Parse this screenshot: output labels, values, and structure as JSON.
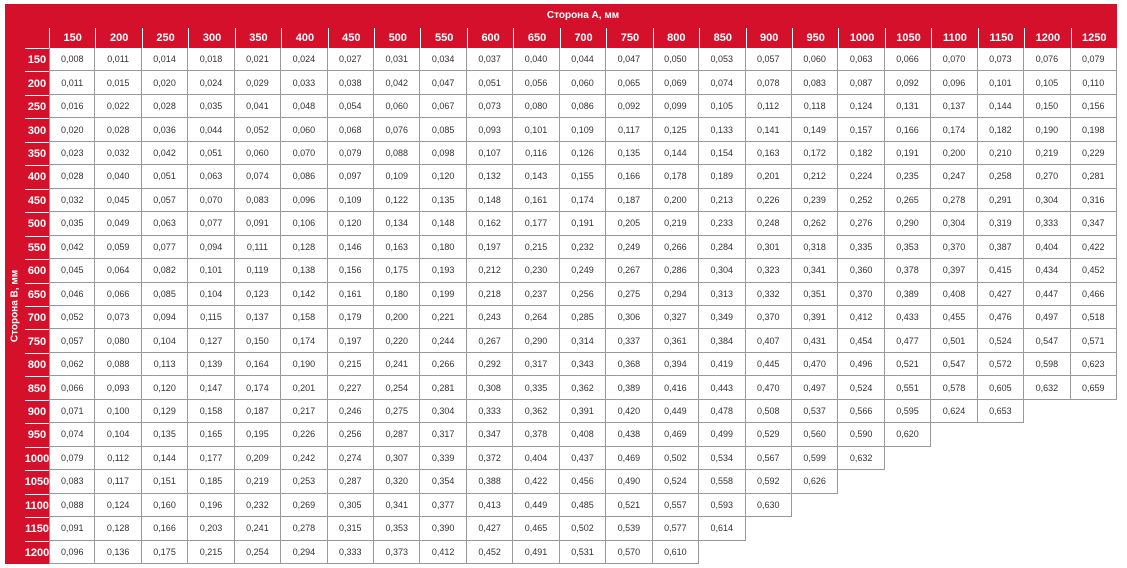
{
  "table": {
    "col_title": "Сторона А, мм",
    "row_title": "Сторона В, мм",
    "col_headers": [
      "150",
      "200",
      "250",
      "300",
      "350",
      "400",
      "450",
      "500",
      "550",
      "600",
      "650",
      "700",
      "750",
      "800",
      "850",
      "900",
      "950",
      "1000",
      "1050",
      "1100",
      "1150",
      "1200",
      "1250"
    ],
    "rows": [
      {
        "label": "150",
        "values": [
          "0,008",
          "0,011",
          "0,014",
          "0,018",
          "0,021",
          "0,024",
          "0,027",
          "0,031",
          "0,034",
          "0,037",
          "0,040",
          "0,044",
          "0,047",
          "0,050",
          "0,053",
          "0,057",
          "0,060",
          "0,063",
          "0,066",
          "0,070",
          "0,073",
          "0,076",
          "0,079"
        ]
      },
      {
        "label": "200",
        "values": [
          "0,011",
          "0,015",
          "0,020",
          "0,024",
          "0,029",
          "0,033",
          "0,038",
          "0,042",
          "0,047",
          "0,051",
          "0,056",
          "0,060",
          "0,065",
          "0,069",
          "0,074",
          "0,078",
          "0,083",
          "0,087",
          "0,092",
          "0,096",
          "0,101",
          "0,105",
          "0,110"
        ]
      },
      {
        "label": "250",
        "values": [
          "0,016",
          "0,022",
          "0,028",
          "0,035",
          "0,041",
          "0,048",
          "0,054",
          "0,060",
          "0,067",
          "0,073",
          "0,080",
          "0,086",
          "0,092",
          "0,099",
          "0,105",
          "0,112",
          "0,118",
          "0,124",
          "0,131",
          "0,137",
          "0,144",
          "0,150",
          "0,156"
        ]
      },
      {
        "label": "300",
        "values": [
          "0,020",
          "0,028",
          "0,036",
          "0,044",
          "0,052",
          "0,060",
          "0,068",
          "0,076",
          "0,085",
          "0,093",
          "0,101",
          "0,109",
          "0,117",
          "0,125",
          "0,133",
          "0,141",
          "0,149",
          "0,157",
          "0,166",
          "0,174",
          "0,182",
          "0,190",
          "0,198"
        ]
      },
      {
        "label": "350",
        "values": [
          "0,023",
          "0,032",
          "0,042",
          "0,051",
          "0,060",
          "0,070",
          "0,079",
          "0,088",
          "0,098",
          "0,107",
          "0,116",
          "0,126",
          "0,135",
          "0,144",
          "0,154",
          "0,163",
          "0,172",
          "0,182",
          "0,191",
          "0,200",
          "0,210",
          "0,219",
          "0,229"
        ]
      },
      {
        "label": "400",
        "values": [
          "0,028",
          "0,040",
          "0,051",
          "0,063",
          "0,074",
          "0,086",
          "0,097",
          "0,109",
          "0,120",
          "0,132",
          "0,143",
          "0,155",
          "0,166",
          "0,178",
          "0,189",
          "0,201",
          "0,212",
          "0,224",
          "0,235",
          "0,247",
          "0,258",
          "0,270",
          "0,281"
        ]
      },
      {
        "label": "450",
        "values": [
          "0,032",
          "0,045",
          "0,057",
          "0,070",
          "0,083",
          "0,096",
          "0,109",
          "0,122",
          "0,135",
          "0,148",
          "0,161",
          "0,174",
          "0,187",
          "0,200",
          "0,213",
          "0,226",
          "0,239",
          "0,252",
          "0,265",
          "0,278",
          "0,291",
          "0,304",
          "0,316"
        ]
      },
      {
        "label": "500",
        "values": [
          "0,035",
          "0,049",
          "0,063",
          "0,077",
          "0,091",
          "0,106",
          "0,120",
          "0,134",
          "0,148",
          "0,162",
          "0,177",
          "0,191",
          "0,205",
          "0,219",
          "0,233",
          "0,248",
          "0,262",
          "0,276",
          "0,290",
          "0,304",
          "0,319",
          "0,333",
          "0,347"
        ]
      },
      {
        "label": "550",
        "values": [
          "0,042",
          "0,059",
          "0,077",
          "0,094",
          "0,111",
          "0,128",
          "0,146",
          "0,163",
          "0,180",
          "0,197",
          "0,215",
          "0,232",
          "0,249",
          "0,266",
          "0,284",
          "0,301",
          "0,318",
          "0,335",
          "0,353",
          "0,370",
          "0,387",
          "0,404",
          "0,422"
        ]
      },
      {
        "label": "600",
        "values": [
          "0,045",
          "0,064",
          "0,082",
          "0,101",
          "0,119",
          "0,138",
          "0,156",
          "0,175",
          "0,193",
          "0,212",
          "0,230",
          "0,249",
          "0,267",
          "0,286",
          "0,304",
          "0,323",
          "0,341",
          "0,360",
          "0,378",
          "0,397",
          "0,415",
          "0,434",
          "0,452"
        ]
      },
      {
        "label": "650",
        "values": [
          "0,046",
          "0,066",
          "0,085",
          "0,104",
          "0,123",
          "0,142",
          "0,161",
          "0,180",
          "0,199",
          "0,218",
          "0,237",
          "0,256",
          "0,275",
          "0,294",
          "0,313",
          "0,332",
          "0,351",
          "0,370",
          "0,389",
          "0,408",
          "0,427",
          "0,447",
          "0,466"
        ]
      },
      {
        "label": "700",
        "values": [
          "0,052",
          "0,073",
          "0,094",
          "0,115",
          "0,137",
          "0,158",
          "0,179",
          "0,200",
          "0,221",
          "0,243",
          "0,264",
          "0,285",
          "0,306",
          "0,327",
          "0,349",
          "0,370",
          "0,391",
          "0,412",
          "0,433",
          "0,455",
          "0,476",
          "0,497",
          "0,518"
        ]
      },
      {
        "label": "750",
        "values": [
          "0,057",
          "0,080",
          "0,104",
          "0,127",
          "0,150",
          "0,174",
          "0,197",
          "0,220",
          "0,244",
          "0,267",
          "0,290",
          "0,314",
          "0,337",
          "0,361",
          "0,384",
          "0,407",
          "0,431",
          "0,454",
          "0,477",
          "0,501",
          "0,524",
          "0,547",
          "0,571"
        ]
      },
      {
        "label": "800",
        "values": [
          "0,062",
          "0,088",
          "0,113",
          "0,139",
          "0,164",
          "0,190",
          "0,215",
          "0,241",
          "0,266",
          "0,292",
          "0,317",
          "0,343",
          "0,368",
          "0,394",
          "0,419",
          "0,445",
          "0,470",
          "0,496",
          "0,521",
          "0,547",
          "0,572",
          "0,598",
          "0,623"
        ]
      },
      {
        "label": "850",
        "values": [
          "0,066",
          "0,093",
          "0,120",
          "0,147",
          "0,174",
          "0,201",
          "0,227",
          "0,254",
          "0,281",
          "0,308",
          "0,335",
          "0,362",
          "0,389",
          "0,416",
          "0,443",
          "0,470",
          "0,497",
          "0,524",
          "0,551",
          "0,578",
          "0,605",
          "0,632",
          "0,659"
        ]
      },
      {
        "label": "900",
        "values": [
          "0,071",
          "0,100",
          "0,129",
          "0,158",
          "0,187",
          "0,217",
          "0,246",
          "0,275",
          "0,304",
          "0,333",
          "0,362",
          "0,391",
          "0,420",
          "0,449",
          "0,478",
          "0,508",
          "0,537",
          "0,566",
          "0,595",
          "0,624",
          "0,653"
        ]
      },
      {
        "label": "950",
        "values": [
          "0,074",
          "0,104",
          "0,135",
          "0,165",
          "0,195",
          "0,226",
          "0,256",
          "0,287",
          "0,317",
          "0,347",
          "0,378",
          "0,408",
          "0,438",
          "0,469",
          "0,499",
          "0,529",
          "0,560",
          "0,590",
          "0,620"
        ]
      },
      {
        "label": "1000",
        "values": [
          "0,079",
          "0,112",
          "0,144",
          "0,177",
          "0,209",
          "0,242",
          "0,274",
          "0,307",
          "0,339",
          "0,372",
          "0,404",
          "0,437",
          "0,469",
          "0,502",
          "0,534",
          "0,567",
          "0,599",
          "0,632"
        ]
      },
      {
        "label": "1050",
        "values": [
          "0,083",
          "0,117",
          "0,151",
          "0,185",
          "0,219",
          "0,253",
          "0,287",
          "0,320",
          "0,354",
          "0,388",
          "0,422",
          "0,456",
          "0,490",
          "0,524",
          "0,558",
          "0,592",
          "0,626"
        ]
      },
      {
        "label": "1100",
        "values": [
          "0,088",
          "0,124",
          "0,160",
          "0,196",
          "0,232",
          "0,269",
          "0,305",
          "0,341",
          "0,377",
          "0,413",
          "0,449",
          "0,485",
          "0,521",
          "0,557",
          "0,593",
          "0,630"
        ]
      },
      {
        "label": "1150",
        "values": [
          "0,091",
          "0,128",
          "0,166",
          "0,203",
          "0,241",
          "0,278",
          "0,315",
          "0,353",
          "0,390",
          "0,427",
          "0,465",
          "0,502",
          "0,539",
          "0,577",
          "0,614"
        ]
      },
      {
        "label": "1200",
        "values": [
          "0,096",
          "0,136",
          "0,175",
          "0,215",
          "0,254",
          "0,294",
          "0,333",
          "0,373",
          "0,412",
          "0,452",
          "0,491",
          "0,531",
          "0,570",
          "0,610"
        ]
      }
    ],
    "colors": {
      "header_red": "#d5102a",
      "grid": "#999999",
      "text": "#333333"
    }
  }
}
